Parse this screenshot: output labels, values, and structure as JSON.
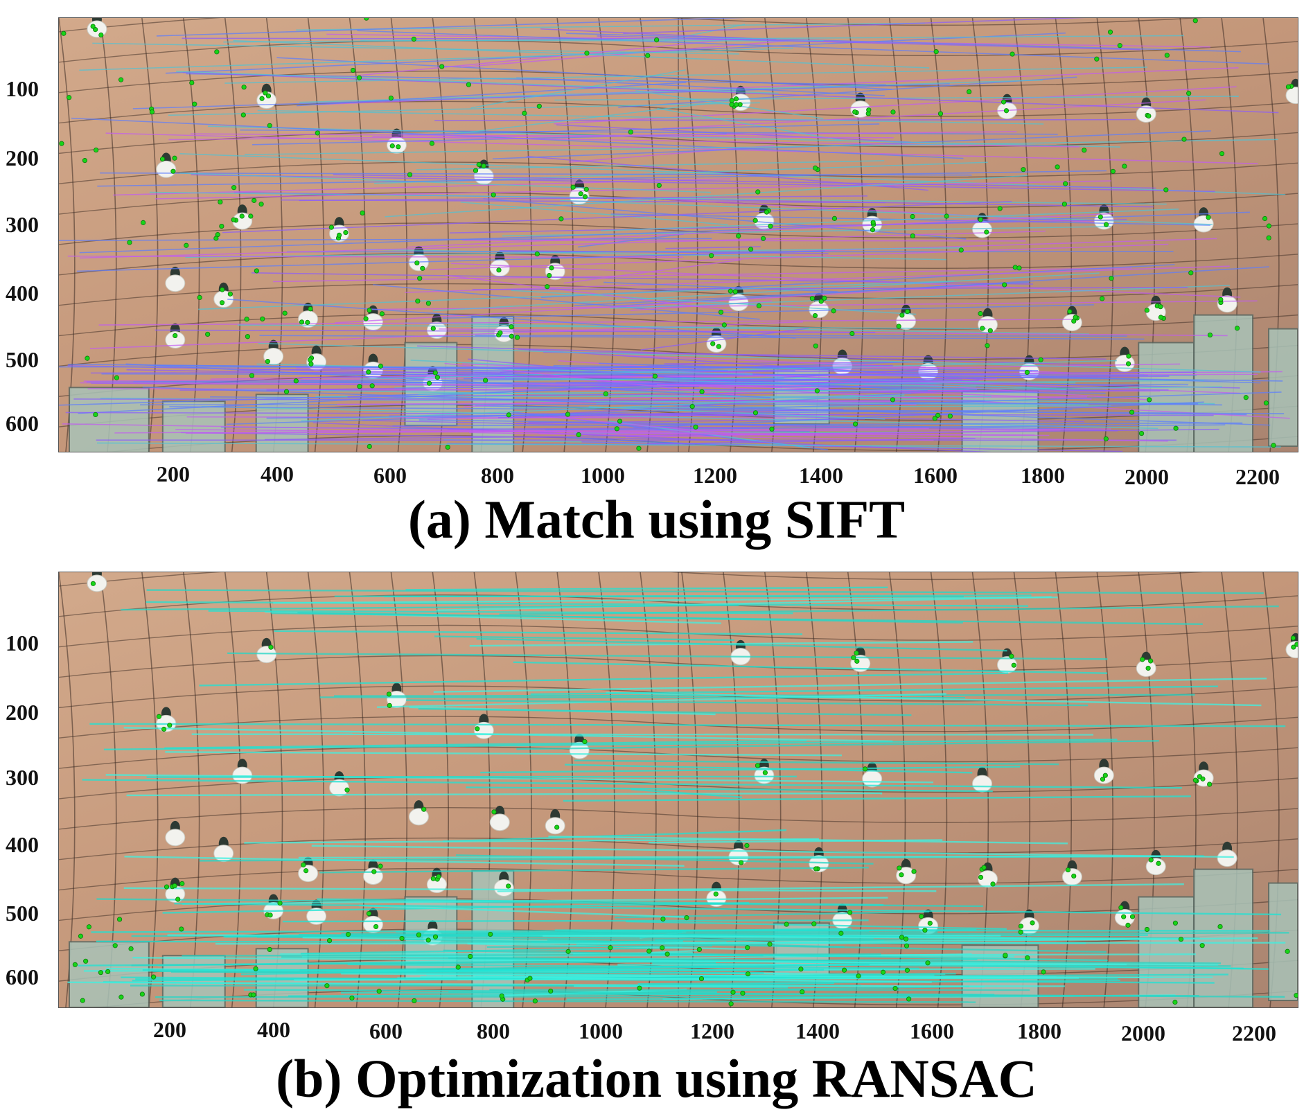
{
  "panels": [
    {
      "id": "a",
      "caption": "(a) Match using SIFT",
      "y_ticks": [
        "100",
        "200",
        "300",
        "400",
        "500",
        "600"
      ],
      "x_ticks": [
        "200",
        "400",
        "600",
        "800",
        "1000",
        "1200",
        "1400",
        "1600",
        "1800",
        "2000",
        "2200"
      ],
      "match_line_colors": [
        "#8a5cff",
        "#c25cf2",
        "#5c7dff",
        "#4fc3d6"
      ]
    },
    {
      "id": "b",
      "caption": "(b) Optimization using RANSAC",
      "y_ticks": [
        "100",
        "200",
        "300",
        "400",
        "500",
        "600"
      ],
      "x_ticks": [
        "200",
        "400",
        "600",
        "800",
        "1000",
        "1200",
        "1400",
        "1600",
        "1800",
        "2000",
        "2200"
      ],
      "match_line_colors": [
        "#1fe3d4",
        "#28d6c6",
        "#40f0e0"
      ]
    }
  ],
  "colors": {
    "ceiling": "#c79a7c",
    "grid": "#3a2a22",
    "keypoint": "#18d418"
  }
}
